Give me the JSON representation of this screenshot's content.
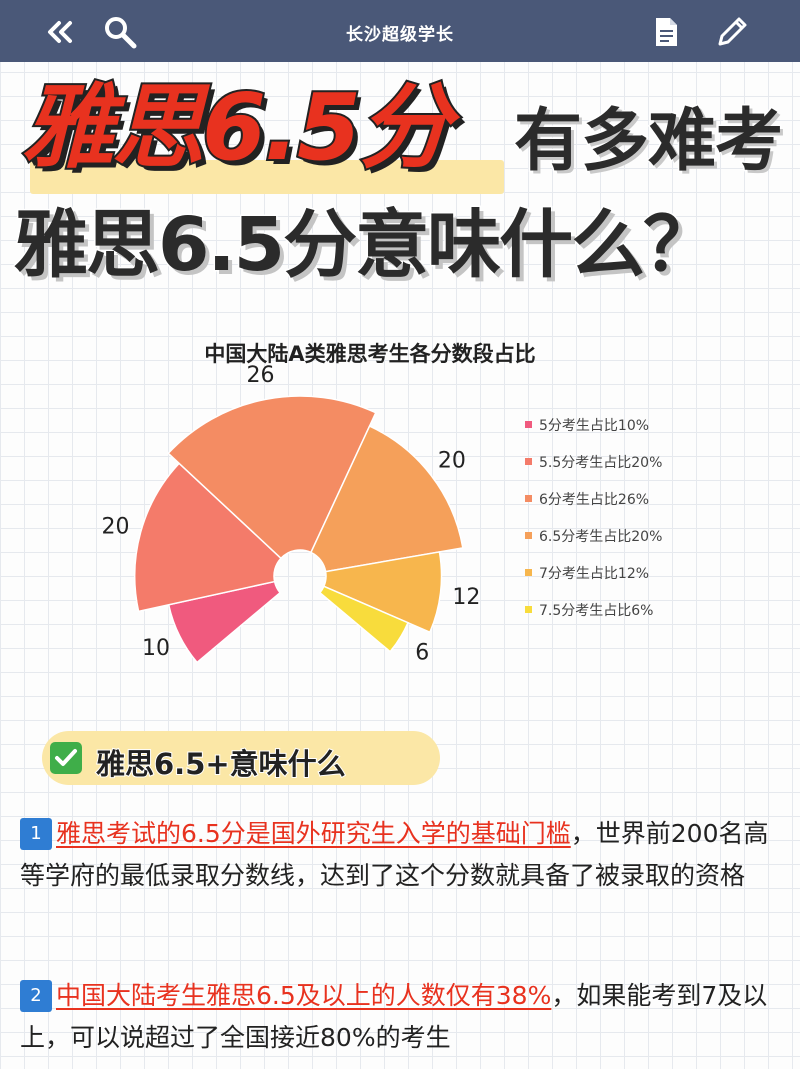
{
  "topbar": {
    "title": "长沙超级学长",
    "icons": [
      "back-double-chevron-icon",
      "search-icon",
      "document-icon",
      "pencil-icon"
    ]
  },
  "headline": {
    "part1": "雅思6.5分",
    "part2": "有多难考",
    "line2": "雅思6.5分意味什么？"
  },
  "chart_data": {
    "type": "pie",
    "title": "中国大陆A类雅思考生各分数段占比",
    "categories": [
      "5分考生占比10%",
      "5.5分考生占比20%",
      "6分考生占比26%",
      "6.5分考生占比20%",
      "7分考生占比12%",
      "7.5分考生占比6%"
    ],
    "values": [
      10,
      20,
      26,
      20,
      12,
      6
    ],
    "colors": [
      "#f05a7e",
      "#f47b6a",
      "#f48c63",
      "#f5a05a",
      "#f7b64d",
      "#f8dc3c"
    ],
    "legend_position": "right"
  },
  "section": {
    "check_icon": "check-mark-icon",
    "title": "雅思6.5+意味什么"
  },
  "points": [
    {
      "num": "1",
      "highlight": "雅思考试的6.5分是国外研究生入学的基础门槛",
      "rest": "，世界前200名高等学府的最低录取分数线，达到了这个分数就具备了被录取的资格"
    },
    {
      "num": "2",
      "highlight": "中国大陆考生雅思6.5及以上的人数仅有38%",
      "rest": "，如果能考到7及以上，可以说超过了全国接近80%的考生"
    }
  ]
}
